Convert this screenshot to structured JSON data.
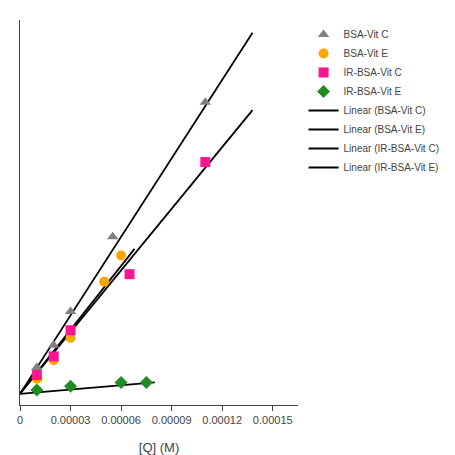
{
  "chart_data": {
    "type": "scatter",
    "xlabel": "[Q] (M)",
    "xlim": [
      0,
      0.000165
    ],
    "xticks": [
      0,
      3e-05,
      6e-05,
      9e-05,
      0.00012,
      0.00015
    ],
    "ylim": [
      0.97,
      2.0
    ],
    "tick_labels": "x",
    "grid": false,
    "legend": "upper right",
    "series": [
      {
        "name": "BSA-Vit C",
        "type": "scatter",
        "color": "#808080",
        "marker": "triangle-up",
        "x": [
          1e-05,
          2e-05,
          3e-05,
          5.5e-05,
          0.00011
        ],
        "values": [
          1.07,
          1.13,
          1.22,
          1.42,
          1.78
        ]
      },
      {
        "name": "BSA-Vit E",
        "type": "scatter",
        "color": "#FFA500",
        "marker": "circle",
        "x": [
          1e-05,
          2e-05,
          3e-05,
          5e-05,
          6e-05
        ],
        "values": [
          1.04,
          1.09,
          1.15,
          1.3,
          1.37
        ]
      },
      {
        "name": "IR-BSA-Vit C",
        "type": "scatter",
        "color": "#FF1493",
        "marker": "square",
        "x": [
          1e-05,
          2e-05,
          3e-05,
          6.5e-05,
          0.00011
        ],
        "values": [
          1.05,
          1.1,
          1.17,
          1.32,
          1.62
        ]
      },
      {
        "name": "IR-BSA-Vit E",
        "type": "scatter",
        "color": "#228B22",
        "marker": "diamond",
        "x": [
          1e-05,
          3e-05,
          6e-05,
          7.5e-05
        ],
        "values": [
          1.01,
          1.02,
          1.03,
          1.03
        ]
      },
      {
        "name": "Linear (BSA-Vit C)",
        "type": "line",
        "color": "#000000",
        "line_style": "solid",
        "x": [
          0.0,
          0.000138
        ],
        "values": [
          1.0,
          1.966
        ]
      },
      {
        "name": "Linear (BSA-Vit E)",
        "type": "line",
        "color": "#000000",
        "line_style": "solid",
        "x": [
          0.0,
          6.8e-05
        ],
        "values": [
          1.0,
          1.3876
        ]
      },
      {
        "name": "Linear (IR-BSA-Vit C)",
        "type": "line",
        "color": "#000000",
        "line_style": "solid",
        "x": [
          0.0,
          0.000138
        ],
        "values": [
          1.0,
          1.759
        ]
      },
      {
        "name": "Linear (IR-BSA-Vit E)",
        "type": "line",
        "color": "#000000",
        "line_style": "solid",
        "x": [
          0.0,
          8e-05
        ],
        "values": [
          1.0,
          1.0304
        ]
      }
    ]
  }
}
